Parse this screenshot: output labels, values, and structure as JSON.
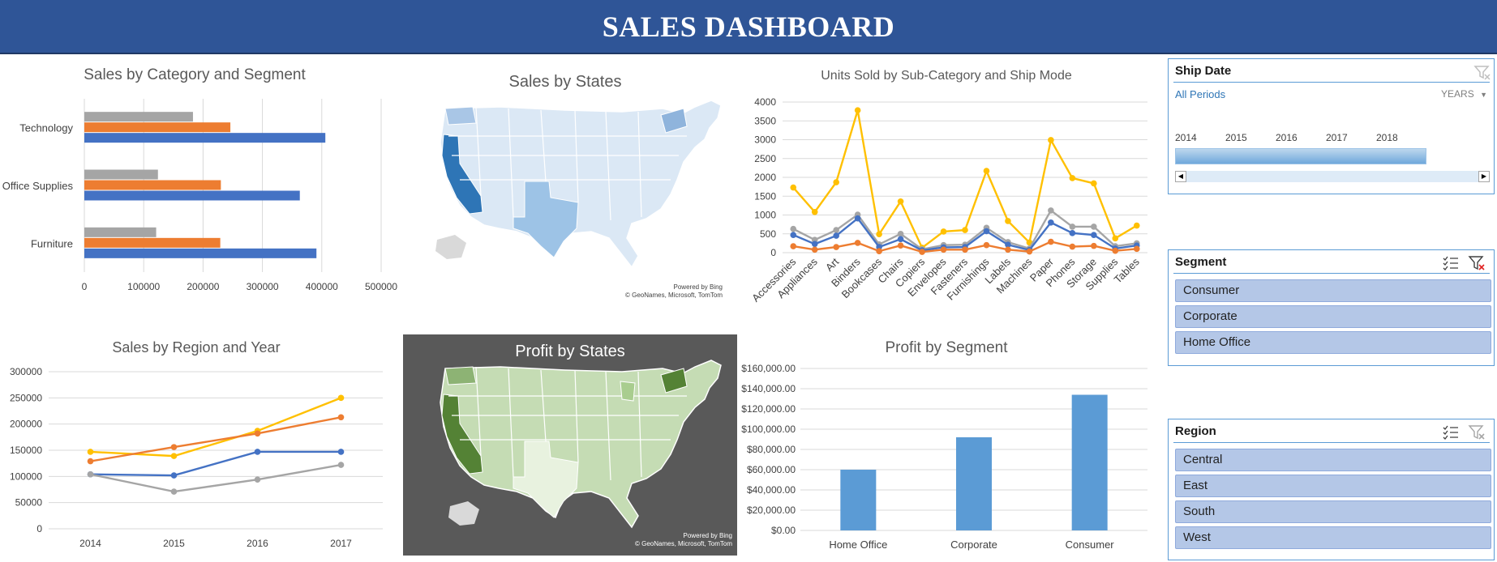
{
  "header": {
    "title": "SALES DASHBOARD"
  },
  "colors": {
    "header_bg": "#2f5597",
    "blue": "#4472c4",
    "orange": "#ed7d31",
    "gray": "#a5a5a5",
    "yellow": "#ffc000",
    "bar_blue": "#5b9bd5",
    "map_dark": "#595959"
  },
  "category_segment_chart": {
    "chart_data": {
      "type": "bar",
      "orientation": "horizontal",
      "title": "Sales by Category and Segment",
      "categories": [
        "Furniture",
        "Office Supplies",
        "Technology"
      ],
      "series": [
        {
          "color": "#4472c4",
          "values": [
            391000,
            363000,
            406000
          ]
        },
        {
          "color": "#ed7d31",
          "values": [
            229000,
            230000,
            246000
          ]
        },
        {
          "color": "#a5a5a5",
          "values": [
            121000,
            124000,
            183000
          ]
        }
      ],
      "x_ticks": [
        "0",
        "100000",
        "200000",
        "300000",
        "400000",
        "500000"
      ],
      "xlim": [
        0,
        500000
      ],
      "grid": true
    }
  },
  "sales_map": {
    "title": "Sales by States",
    "credit_line1": "Powered by Bing",
    "credit_line2": "© GeoNames, Microsoft, TomTom"
  },
  "units_chart": {
    "chart_data": {
      "type": "line",
      "title": "Units Sold by Sub-Category and Ship Mode",
      "categories": [
        "Accessories",
        "Appliances",
        "Art",
        "Binders",
        "Bookcases",
        "Chairs",
        "Copiers",
        "Envelopes",
        "Fasteners",
        "Furnishings",
        "Labels",
        "Machines",
        "Paper",
        "Phones",
        "Storage",
        "Supplies",
        "Tables"
      ],
      "series": [
        {
          "color": "#ffc000",
          "values": [
            1730,
            1080,
            1870,
            3780,
            490,
            1360,
            130,
            560,
            600,
            2170,
            840,
            270,
            2990,
            1980,
            1840,
            380,
            720
          ]
        },
        {
          "color": "#a5a5a5",
          "values": [
            630,
            340,
            600,
            1010,
            220,
            500,
            90,
            200,
            210,
            660,
            280,
            110,
            1120,
            690,
            690,
            170,
            250
          ]
        },
        {
          "color": "#4472c4",
          "values": [
            470,
            230,
            450,
            910,
            150,
            360,
            60,
            140,
            150,
            570,
            210,
            70,
            800,
            520,
            470,
            110,
            190
          ]
        },
        {
          "color": "#ed7d31",
          "values": [
            170,
            80,
            150,
            260,
            40,
            190,
            20,
            80,
            80,
            200,
            80,
            30,
            290,
            160,
            180,
            50,
            100
          ]
        }
      ],
      "y_ticks": [
        "0",
        "500",
        "1000",
        "1500",
        "2000",
        "2500",
        "3000",
        "3500",
        "4000"
      ],
      "ylim": [
        0,
        4000
      ],
      "grid": true
    }
  },
  "region_chart": {
    "chart_data": {
      "type": "line",
      "title": "Sales by Region and Year",
      "categories": [
        "2014",
        "2015",
        "2016",
        "2017"
      ],
      "series": [
        {
          "color": "#ffc000",
          "values": [
            147000,
            139000,
            187000,
            250000
          ]
        },
        {
          "color": "#ed7d31",
          "values": [
            129000,
            156000,
            182000,
            213000
          ]
        },
        {
          "color": "#4472c4",
          "values": [
            104000,
            102000,
            147000,
            147000
          ]
        },
        {
          "color": "#a5a5a5",
          "values": [
            104000,
            71000,
            94000,
            122000
          ]
        }
      ],
      "y_ticks": [
        "0",
        "50000",
        "100000",
        "150000",
        "200000",
        "250000",
        "300000"
      ],
      "ylim": [
        0,
        300000
      ],
      "grid": true
    }
  },
  "profit_map": {
    "title": "Profit by States",
    "credit_line1": "Powered by Bing",
    "credit_line2": "© GeoNames, Microsoft, TomTom"
  },
  "profit_segment_chart": {
    "chart_data": {
      "type": "bar",
      "title": "Profit by Segment",
      "categories": [
        "Home Office",
        "Corporate",
        "Consumer"
      ],
      "values": [
        60000,
        92000,
        134000
      ],
      "color": "#5b9bd5",
      "y_ticks": [
        "$0.00",
        "$20,000.00",
        "$40,000.00",
        "$60,000.00",
        "$80,000.00",
        "$100,000.00",
        "$120,000.00",
        "$140,000.00",
        "$160,000.00"
      ],
      "ylim": [
        0,
        160000
      ],
      "grid": true
    }
  },
  "ship_date_slicer": {
    "title": "Ship Date",
    "period_label": "All Periods",
    "level_label": "YEARS",
    "years": [
      "2014",
      "2015",
      "2016",
      "2017",
      "2018"
    ]
  },
  "segment_slicer": {
    "title": "Segment",
    "items": [
      "Consumer",
      "Corporate",
      "Home Office"
    ]
  },
  "region_slicer": {
    "title": "Region",
    "items": [
      "Central",
      "East",
      "South",
      "West"
    ]
  }
}
